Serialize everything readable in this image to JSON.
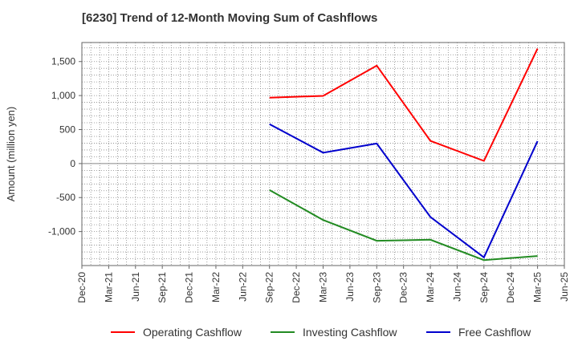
{
  "chart_data": {
    "type": "line",
    "title": "[6230]  Trend of 12-Month Moving Sum of Cashflows",
    "ylabel": "Amount (million yen)",
    "xlabel": "",
    "x_ticks": [
      "Dec-20",
      "Mar-21",
      "Jun-21",
      "Sep-21",
      "Dec-21",
      "Mar-22",
      "Jun-22",
      "Sep-22",
      "Dec-22",
      "Mar-23",
      "Jun-23",
      "Sep-23",
      "Dec-23",
      "Mar-24",
      "Jun-24",
      "Sep-24",
      "Dec-24",
      "Mar-25",
      "Jun-25"
    ],
    "y_ticks": [
      1500,
      1000,
      500,
      0,
      -500,
      -1000
    ],
    "y_tick_labels": [
      "1,500",
      "1,000",
      "500",
      "0",
      "-500",
      "-1,000"
    ],
    "ylim": [
      -1500,
      1780
    ],
    "grid": true,
    "legend_position": "bottom",
    "x": [
      "Sep-22",
      "Mar-23",
      "Sep-23",
      "Mar-24",
      "Sep-24",
      "Mar-25"
    ],
    "series": [
      {
        "name": "Operating Cashflow",
        "color": "#ff0000",
        "values": [
          970,
          995,
          1440,
          335,
          40,
          1690
        ]
      },
      {
        "name": "Investing Cashflow",
        "color": "#228b22",
        "values": [
          -390,
          -830,
          -1135,
          -1120,
          -1420,
          -1360
        ]
      },
      {
        "name": "Free Cashflow",
        "color": "#0000cd",
        "values": [
          580,
          160,
          295,
          -785,
          -1380,
          330
        ]
      }
    ]
  }
}
